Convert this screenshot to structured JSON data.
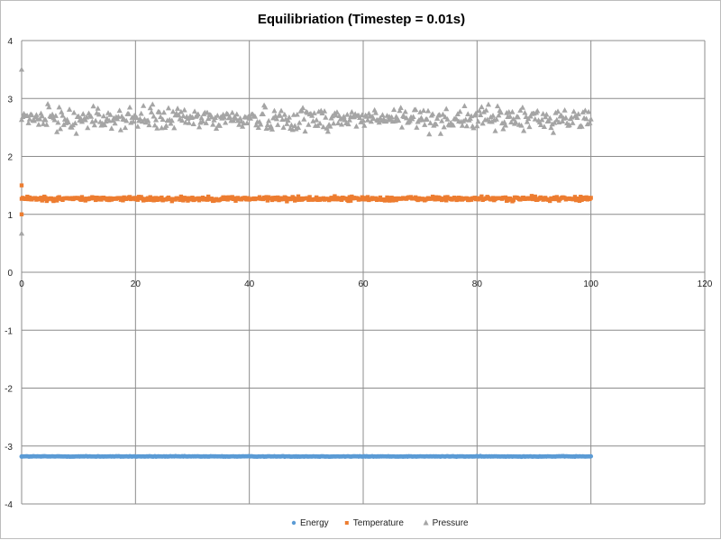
{
  "chart_data": {
    "type": "scatter",
    "title": "Equilibriation (Timestep = 0.01s)",
    "xlabel": "",
    "ylabel": "",
    "xlim": [
      0,
      120
    ],
    "ylim": [
      -4,
      4
    ],
    "x_ticks": [
      0,
      20,
      40,
      60,
      80,
      100,
      120
    ],
    "y_ticks": [
      -4,
      -3,
      -2,
      -1,
      0,
      1,
      2,
      3,
      4
    ],
    "x_tick_labels": [
      "0",
      "20",
      "40",
      "60",
      "80",
      "100",
      "120"
    ],
    "y_tick_labels": [
      "-4",
      "-3",
      "-2",
      "-1",
      "0",
      "1",
      "2",
      "3",
      "4"
    ],
    "grid": true,
    "legend_position": "bottom",
    "x_range_sampled": [
      0,
      100
    ],
    "series": [
      {
        "name": "Energy",
        "color": "#5b9bd5",
        "marker": "circle",
        "mean": -3.18,
        "spread": 0.005,
        "initial_points": [
          [
            0,
            -3.18
          ]
        ]
      },
      {
        "name": "Temperature",
        "color": "#ed7d31",
        "marker": "square",
        "mean": 1.27,
        "spread": 0.035,
        "initial_points": [
          [
            0,
            1.5
          ],
          [
            0,
            1.0
          ]
        ]
      },
      {
        "name": "Pressure",
        "color": "#a5a5a5",
        "marker": "triangle",
        "mean": 2.65,
        "spread": 0.2,
        "initial_points": [
          [
            0,
            3.5
          ],
          [
            0,
            0.67
          ]
        ]
      }
    ]
  }
}
